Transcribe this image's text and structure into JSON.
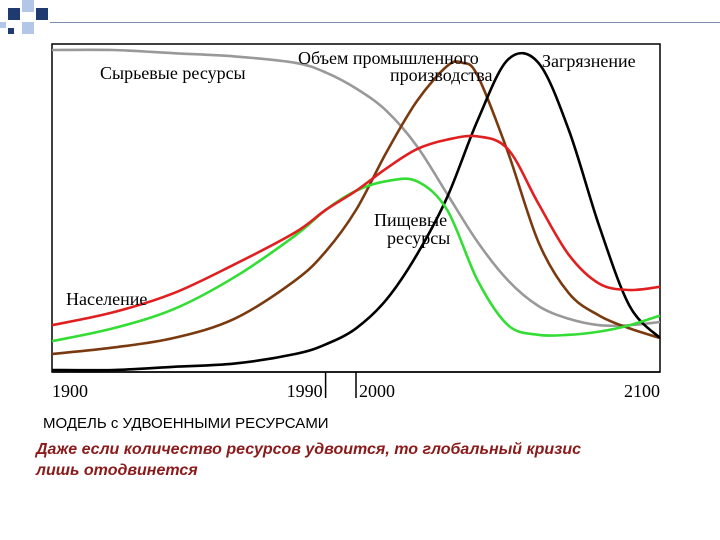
{
  "slide": {
    "caption": "МОДЕЛЬ с УДВОЕННЫМИ РЕСУРСАМИ",
    "subtitle_line1": "Даже если количество ресурсов удвоится, то глобальный кризис",
    "subtitle_line2": "лишь отодвинется",
    "colors": {
      "accent_dark": "#1f3a6e",
      "accent_light": "#b4c6e7",
      "subtitle": "#8b1a1a"
    }
  },
  "chart_data": {
    "type": "line",
    "title": "",
    "xlabel": "",
    "ylabel": "",
    "x_tick_labels": [
      "1900",
      "1990",
      "2000",
      "2100"
    ],
    "x_ticks": [
      1900,
      1990,
      2000,
      2100
    ],
    "xlim": [
      1900,
      2100
    ],
    "ylim": [
      0,
      1
    ],
    "grid": false,
    "series": [
      {
        "name": "Сырьевые ресурсы",
        "color": "#999999",
        "x": [
          1900,
          1920,
          1940,
          1960,
          1980,
          1990,
          2000,
          2010,
          2020,
          2030,
          2040,
          2050,
          2060,
          2070,
          2080,
          2090,
          2100
        ],
        "y": [
          1.0,
          1.0,
          0.99,
          0.98,
          0.96,
          0.93,
          0.88,
          0.81,
          0.7,
          0.55,
          0.4,
          0.28,
          0.2,
          0.16,
          0.14,
          0.14,
          0.15
        ]
      },
      {
        "name": "Объем промышленного производства",
        "color": "#7a3a10",
        "x": [
          1900,
          1920,
          1940,
          1960,
          1980,
          1990,
          2000,
          2010,
          2020,
          2030,
          2035,
          2040,
          2050,
          2060,
          2070,
          2080,
          2090,
          2100
        ],
        "y": [
          0.05,
          0.07,
          0.1,
          0.16,
          0.28,
          0.37,
          0.5,
          0.68,
          0.84,
          0.95,
          0.96,
          0.92,
          0.68,
          0.4,
          0.24,
          0.17,
          0.13,
          0.1
        ]
      },
      {
        "name": "Загрязнение",
        "color": "#000000",
        "x": [
          1900,
          1920,
          1940,
          1960,
          1980,
          1990,
          2000,
          2010,
          2020,
          2030,
          2040,
          2050,
          2060,
          2070,
          2080,
          2090,
          2100
        ],
        "y": [
          0.0,
          0.0,
          0.01,
          0.02,
          0.05,
          0.08,
          0.13,
          0.22,
          0.36,
          0.54,
          0.78,
          0.97,
          0.96,
          0.75,
          0.45,
          0.2,
          0.1
        ]
      },
      {
        "name": "Пищевые ресурсы",
        "color": "#33dd33",
        "x": [
          1900,
          1920,
          1940,
          1960,
          1980,
          1990,
          2000,
          2010,
          2020,
          2030,
          2040,
          2050,
          2060,
          2070,
          2080,
          2090,
          2100
        ],
        "y": [
          0.09,
          0.13,
          0.19,
          0.29,
          0.42,
          0.5,
          0.56,
          0.59,
          0.59,
          0.5,
          0.28,
          0.14,
          0.11,
          0.11,
          0.12,
          0.14,
          0.17
        ]
      },
      {
        "name": "Население",
        "color": "#e02020",
        "x": [
          1900,
          1920,
          1940,
          1960,
          1980,
          1990,
          2000,
          2010,
          2020,
          2030,
          2040,
          2050,
          2060,
          2070,
          2080,
          2090,
          2100
        ],
        "y": [
          0.14,
          0.18,
          0.24,
          0.33,
          0.43,
          0.5,
          0.56,
          0.63,
          0.69,
          0.72,
          0.73,
          0.69,
          0.52,
          0.36,
          0.27,
          0.25,
          0.26
        ]
      }
    ]
  }
}
